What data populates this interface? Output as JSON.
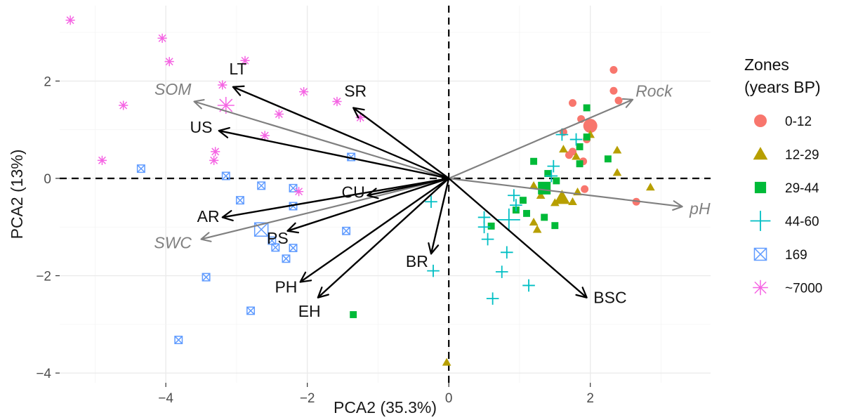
{
  "chart_data": {
    "type": "scatter",
    "xlabel": "PCA2 (35.3%)",
    "ylabel": "PCA2 (13%)",
    "xlim": [
      -5.5,
      3.7
    ],
    "ylim": [
      -4.2,
      3.55
    ],
    "xticks": [
      -4,
      -2,
      0,
      2
    ],
    "yticks": [
      -4,
      -2,
      0,
      2
    ],
    "xtick_labels": [
      "−4",
      "−2",
      "0",
      "2"
    ],
    "ytick_labels": [
      "−4",
      "−2",
      "0",
      "2"
    ],
    "grid": true,
    "legend": {
      "title_lines": [
        "Zones",
        "(years BP)"
      ],
      "position": "right"
    },
    "series": [
      {
        "name": "0-12",
        "shape": "circle",
        "color": "#f8766d",
        "points": [
          [
            2.33,
            2.23
          ],
          [
            2.33,
            1.8
          ],
          [
            2.4,
            1.6
          ],
          [
            1.75,
            1.55
          ],
          [
            1.87,
            1.22
          ],
          [
            1.95,
            0.8
          ],
          [
            1.62,
            0.95
          ],
          [
            1.7,
            0.48
          ],
          [
            1.75,
            0.55
          ],
          [
            2.0,
            1.08
          ],
          [
            1.9,
            0.35
          ],
          [
            1.92,
            -0.22
          ],
          [
            2.65,
            -0.48
          ]
        ],
        "large": [
          [
            2.0,
            1.08
          ]
        ]
      },
      {
        "name": "12-29",
        "shape": "triangle",
        "color": "#b79f00",
        "points": [
          [
            2.38,
            0.58
          ],
          [
            2.38,
            0.12
          ],
          [
            2.85,
            -0.18
          ],
          [
            2.0,
            0.9
          ],
          [
            1.62,
            0.6
          ],
          [
            1.8,
            0.45
          ],
          [
            1.2,
            -0.15
          ],
          [
            1.3,
            -0.35
          ],
          [
            1.82,
            -0.28
          ],
          [
            1.5,
            -0.5
          ],
          [
            1.75,
            -0.48
          ],
          [
            1.2,
            -0.9
          ],
          [
            1.25,
            -1.05
          ],
          [
            -0.03,
            -3.78
          ]
        ],
        "large": [
          [
            1.6,
            -0.4
          ]
        ]
      },
      {
        "name": "29-44",
        "shape": "square",
        "color": "#00ba38",
        "points": [
          [
            1.95,
            1.45
          ],
          [
            1.95,
            0.85
          ],
          [
            1.85,
            0.65
          ],
          [
            2.25,
            0.4
          ],
          [
            1.85,
            0.3
          ],
          [
            1.2,
            0.35
          ],
          [
            1.52,
            -0.05
          ],
          [
            1.4,
            0.1
          ],
          [
            1.05,
            -0.45
          ],
          [
            0.95,
            -0.65
          ],
          [
            1.1,
            -0.72
          ],
          [
            1.35,
            -0.8
          ],
          [
            1.5,
            -0.97
          ],
          [
            0.6,
            -0.98
          ],
          [
            -1.35,
            -2.8
          ]
        ],
        "large": [
          [
            1.35,
            -0.2
          ]
        ]
      },
      {
        "name": "44-60",
        "shape": "plus",
        "color": "#00bfc4",
        "points": [
          [
            1.6,
            0.9
          ],
          [
            1.8,
            0.8
          ],
          [
            1.48,
            0.25
          ],
          [
            1.45,
            0.05
          ],
          [
            0.92,
            -0.35
          ],
          [
            0.95,
            -0.55
          ],
          [
            0.5,
            -0.8
          ],
          [
            0.5,
            -1.0
          ],
          [
            0.55,
            -1.25
          ],
          [
            0.82,
            -1.52
          ],
          [
            0.75,
            -1.92
          ],
          [
            1.13,
            -2.2
          ],
          [
            0.62,
            -2.47
          ],
          [
            -0.25,
            -0.48
          ],
          [
            -0.22,
            -1.9
          ]
        ],
        "large": [
          [
            0.85,
            -0.85
          ]
        ]
      },
      {
        "name": "169",
        "shape": "squarecross",
        "color": "#619cff",
        "points": [
          [
            -4.35,
            0.2
          ],
          [
            -1.38,
            0.44
          ],
          [
            -3.15,
            0.05
          ],
          [
            -2.65,
            -0.15
          ],
          [
            -2.2,
            -0.2
          ],
          [
            -2.95,
            -0.45
          ],
          [
            -2.2,
            -0.57
          ],
          [
            -2.5,
            -1.28
          ],
          [
            -2.45,
            -1.42
          ],
          [
            -2.2,
            -1.43
          ],
          [
            -2.3,
            -1.65
          ],
          [
            -1.45,
            -1.08
          ],
          [
            -3.43,
            -2.03
          ],
          [
            -2.8,
            -2.72
          ],
          [
            -3.82,
            -3.32
          ]
        ],
        "large": [
          [
            -2.65,
            -1.05
          ]
        ]
      },
      {
        "name": "~7000",
        "shape": "asterisk",
        "color": "#f564e3",
        "points": [
          [
            -5.35,
            3.25
          ],
          [
            -4.05,
            2.88
          ],
          [
            -3.95,
            2.4
          ],
          [
            -2.88,
            2.42
          ],
          [
            -3.2,
            1.92
          ],
          [
            -2.05,
            1.78
          ],
          [
            -1.58,
            1.58
          ],
          [
            -4.6,
            1.5
          ],
          [
            -1.25,
            1.25
          ],
          [
            -2.4,
            1.32
          ],
          [
            -2.6,
            0.88
          ],
          [
            -3.3,
            0.55
          ],
          [
            -3.32,
            0.37
          ],
          [
            -4.9,
            0.37
          ],
          [
            -2.12,
            -0.27
          ]
        ],
        "large": [
          [
            -3.15,
            1.5
          ]
        ]
      }
    ],
    "loading_vectors": [
      {
        "name": "LT",
        "x": -3.05,
        "y": 1.88,
        "label_x": -2.98,
        "label_y": 2.25
      },
      {
        "name": "SR",
        "x": -1.35,
        "y": 1.45,
        "label_x": -1.32,
        "label_y": 1.8
      },
      {
        "name": "US",
        "x": -3.25,
        "y": 0.98,
        "label_x": -3.5,
        "label_y": 1.05
      },
      {
        "name": "CU",
        "x": -1.15,
        "y": -0.35,
        "label_x": -1.35,
        "label_y": -0.28
      },
      {
        "name": "AR",
        "x": -3.2,
        "y": -0.8,
        "label_x": -3.4,
        "label_y": -0.78
      },
      {
        "name": "PS",
        "x": -2.28,
        "y": -1.08,
        "label_x": -2.42,
        "label_y": -1.23
      },
      {
        "name": "PH",
        "x": -2.1,
        "y": -2.13,
        "label_x": -2.3,
        "label_y": -2.23
      },
      {
        "name": "EH",
        "x": -1.85,
        "y": -2.45,
        "label_x": -1.97,
        "label_y": -2.73
      },
      {
        "name": "BR",
        "x": -0.25,
        "y": -1.55,
        "label_x": -0.45,
        "label_y": -1.7
      },
      {
        "name": "BSC",
        "x": 1.95,
        "y": -2.45,
        "label_x": 2.28,
        "label_y": -2.45
      }
    ],
    "env_vectors": [
      {
        "name": "SOM",
        "x": -3.6,
        "y": 1.58,
        "label_x": -3.9,
        "label_y": 1.83
      },
      {
        "name": "SWC",
        "x": -3.5,
        "y": -1.25,
        "label_x": -3.9,
        "label_y": -1.32
      },
      {
        "name": "Rock",
        "x": 2.6,
        "y": 1.62,
        "label_x": 2.9,
        "label_y": 1.8
      },
      {
        "name": "pH",
        "x": 3.3,
        "y": -0.58,
        "label_x": 3.55,
        "label_y": -0.62
      }
    ]
  }
}
